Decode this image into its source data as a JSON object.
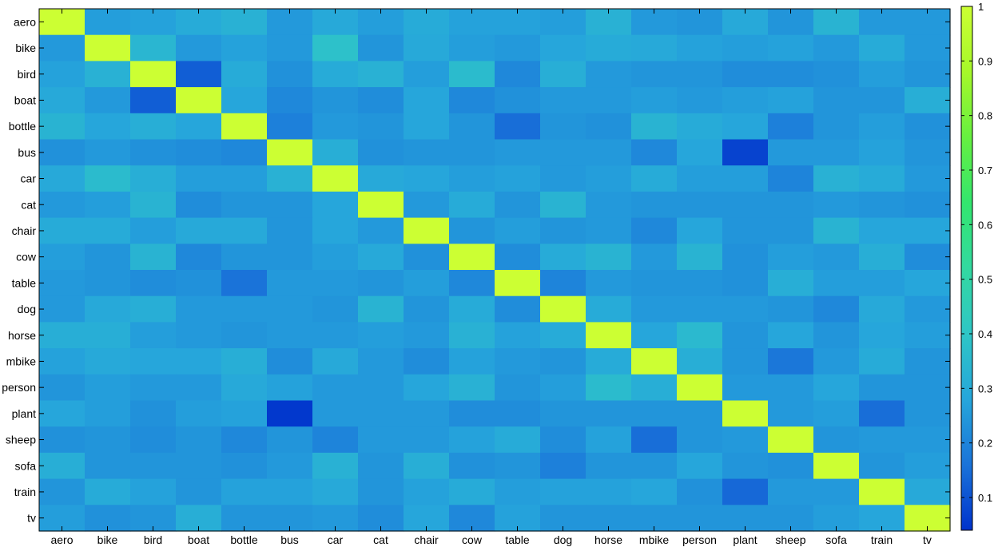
{
  "chart_data": {
    "type": "heatmap",
    "title": "",
    "xlabel": "",
    "ylabel": "",
    "x_categories": [
      "aero",
      "bike",
      "bird",
      "boat",
      "bottle",
      "bus",
      "car",
      "cat",
      "chair",
      "cow",
      "table",
      "dog",
      "horse",
      "mbike",
      "person",
      "plant",
      "sheep",
      "sofa",
      "train",
      "tv"
    ],
    "y_categories": [
      "aero",
      "bike",
      "bird",
      "boat",
      "bottle",
      "bus",
      "car",
      "cat",
      "chair",
      "cow",
      "table",
      "dog",
      "horse",
      "mbike",
      "person",
      "plant",
      "sheep",
      "sofa",
      "train",
      "tv"
    ],
    "values": [
      [
        1.0,
        0.26,
        0.27,
        0.3,
        0.32,
        0.25,
        0.29,
        0.26,
        0.3,
        0.27,
        0.27,
        0.26,
        0.32,
        0.25,
        0.24,
        0.29,
        0.24,
        0.33,
        0.25,
        0.25
      ],
      [
        0.25,
        1.0,
        0.34,
        0.25,
        0.27,
        0.25,
        0.38,
        0.24,
        0.29,
        0.26,
        0.25,
        0.28,
        0.3,
        0.29,
        0.27,
        0.26,
        0.27,
        0.25,
        0.3,
        0.25
      ],
      [
        0.27,
        0.32,
        1.0,
        0.12,
        0.3,
        0.23,
        0.3,
        0.32,
        0.26,
        0.36,
        0.21,
        0.31,
        0.25,
        0.24,
        0.24,
        0.22,
        0.22,
        0.23,
        0.26,
        0.24
      ],
      [
        0.29,
        0.25,
        0.12,
        1.0,
        0.28,
        0.21,
        0.24,
        0.22,
        0.28,
        0.21,
        0.23,
        0.25,
        0.25,
        0.26,
        0.25,
        0.26,
        0.27,
        0.24,
        0.24,
        0.31
      ],
      [
        0.33,
        0.28,
        0.31,
        0.28,
        1.0,
        0.19,
        0.25,
        0.24,
        0.28,
        0.24,
        0.15,
        0.24,
        0.23,
        0.33,
        0.3,
        0.28,
        0.19,
        0.24,
        0.26,
        0.23
      ],
      [
        0.23,
        0.25,
        0.23,
        0.22,
        0.21,
        1.0,
        0.31,
        0.23,
        0.24,
        0.24,
        0.25,
        0.25,
        0.25,
        0.21,
        0.28,
        0.07,
        0.25,
        0.25,
        0.27,
        0.24
      ],
      [
        0.29,
        0.36,
        0.31,
        0.26,
        0.26,
        0.32,
        1.0,
        0.29,
        0.28,
        0.26,
        0.27,
        0.25,
        0.26,
        0.3,
        0.26,
        0.26,
        0.2,
        0.32,
        0.3,
        0.25
      ],
      [
        0.25,
        0.26,
        0.33,
        0.22,
        0.24,
        0.24,
        0.28,
        1.0,
        0.25,
        0.3,
        0.24,
        0.33,
        0.25,
        0.24,
        0.24,
        0.24,
        0.24,
        0.25,
        0.24,
        0.23
      ],
      [
        0.3,
        0.3,
        0.26,
        0.29,
        0.29,
        0.24,
        0.28,
        0.25,
        1.0,
        0.24,
        0.26,
        0.24,
        0.25,
        0.21,
        0.28,
        0.24,
        0.24,
        0.33,
        0.28,
        0.28
      ],
      [
        0.26,
        0.24,
        0.33,
        0.21,
        0.24,
        0.24,
        0.26,
        0.29,
        0.23,
        1.0,
        0.22,
        0.3,
        0.33,
        0.25,
        0.33,
        0.23,
        0.26,
        0.25,
        0.31,
        0.22
      ],
      [
        0.25,
        0.24,
        0.22,
        0.23,
        0.16,
        0.25,
        0.25,
        0.24,
        0.26,
        0.21,
        1.0,
        0.2,
        0.25,
        0.24,
        0.24,
        0.23,
        0.31,
        0.26,
        0.26,
        0.28
      ],
      [
        0.25,
        0.29,
        0.31,
        0.25,
        0.25,
        0.25,
        0.24,
        0.33,
        0.24,
        0.3,
        0.22,
        1.0,
        0.3,
        0.25,
        0.25,
        0.25,
        0.24,
        0.21,
        0.29,
        0.25
      ],
      [
        0.31,
        0.31,
        0.26,
        0.25,
        0.24,
        0.25,
        0.25,
        0.26,
        0.25,
        0.32,
        0.27,
        0.3,
        1.0,
        0.28,
        0.35,
        0.24,
        0.28,
        0.24,
        0.28,
        0.26
      ],
      [
        0.27,
        0.29,
        0.28,
        0.28,
        0.31,
        0.22,
        0.29,
        0.25,
        0.22,
        0.27,
        0.25,
        0.24,
        0.3,
        1.0,
        0.31,
        0.24,
        0.17,
        0.25,
        0.3,
        0.24
      ],
      [
        0.24,
        0.26,
        0.25,
        0.25,
        0.29,
        0.27,
        0.25,
        0.25,
        0.28,
        0.32,
        0.24,
        0.26,
        0.36,
        0.31,
        1.0,
        0.25,
        0.25,
        0.28,
        0.24,
        0.24
      ],
      [
        0.28,
        0.26,
        0.23,
        0.26,
        0.27,
        0.05,
        0.25,
        0.25,
        0.25,
        0.22,
        0.22,
        0.24,
        0.24,
        0.24,
        0.24,
        1.0,
        0.25,
        0.26,
        0.15,
        0.24
      ],
      [
        0.23,
        0.24,
        0.22,
        0.24,
        0.21,
        0.24,
        0.2,
        0.25,
        0.25,
        0.27,
        0.3,
        0.22,
        0.27,
        0.15,
        0.24,
        0.25,
        1.0,
        0.24,
        0.25,
        0.25
      ],
      [
        0.31,
        0.24,
        0.24,
        0.24,
        0.23,
        0.25,
        0.32,
        0.24,
        0.31,
        0.23,
        0.24,
        0.19,
        0.24,
        0.24,
        0.28,
        0.24,
        0.23,
        1.0,
        0.24,
        0.26
      ],
      [
        0.24,
        0.3,
        0.27,
        0.24,
        0.27,
        0.27,
        0.29,
        0.24,
        0.27,
        0.3,
        0.26,
        0.27,
        0.27,
        0.28,
        0.23,
        0.14,
        0.25,
        0.25,
        1.0,
        0.29
      ],
      [
        0.26,
        0.23,
        0.24,
        0.31,
        0.24,
        0.24,
        0.25,
        0.22,
        0.28,
        0.21,
        0.27,
        0.24,
        0.24,
        0.24,
        0.24,
        0.24,
        0.24,
        0.26,
        0.28,
        1.0
      ]
    ],
    "colorbar": {
      "min": 0.04,
      "max": 1,
      "ticks": [
        0.1,
        0.2,
        0.3,
        0.4,
        0.5,
        0.6,
        0.7,
        0.8,
        0.9,
        1
      ],
      "tick_labels": [
        "0.1",
        "0.2",
        "0.3",
        "0.4",
        "0.5",
        "0.6",
        "0.7",
        "0.8",
        "0.9",
        "1"
      ]
    },
    "colormap_stops": [
      "#0033cc",
      "#1a73d9",
      "#26a6db",
      "#2ec6c6",
      "#33d9a0",
      "#33e66e",
      "#66f040",
      "#a6f82a",
      "#ccff33"
    ],
    "grid": false,
    "legend": "colorbar-right"
  }
}
